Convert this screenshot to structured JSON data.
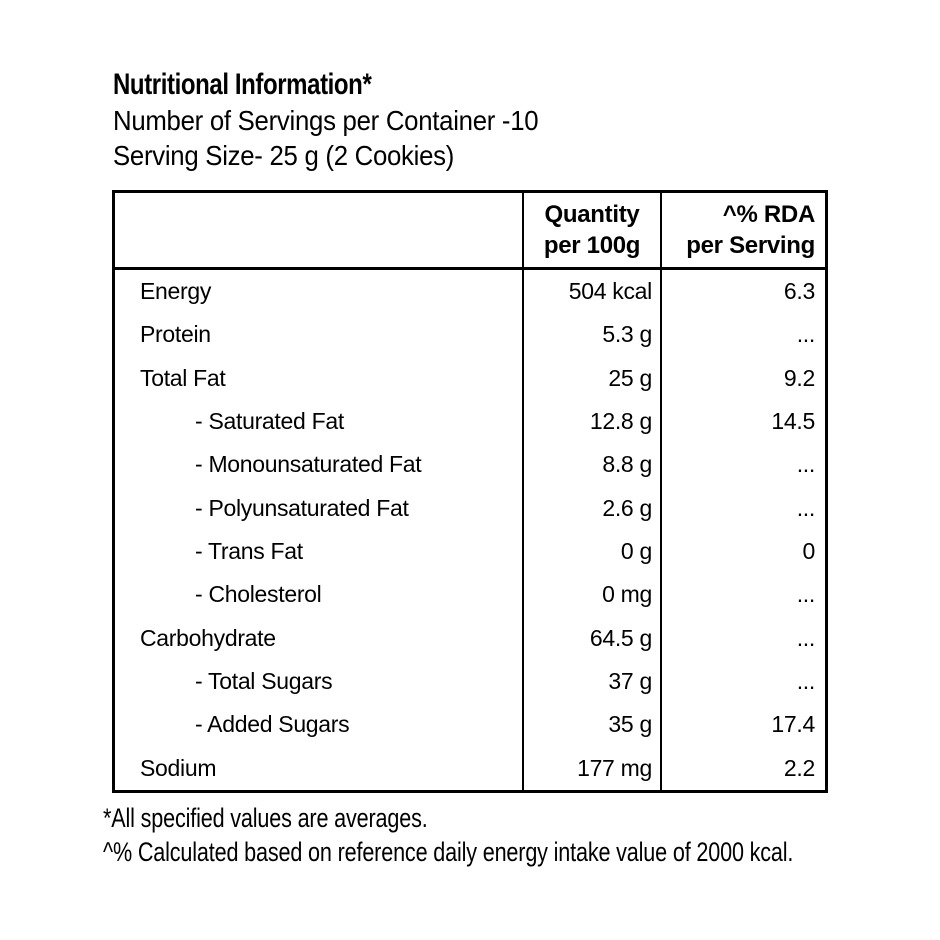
{
  "label": {
    "title": "Nutritional Information*",
    "servings_per_container": "Number of Servings per Container -10",
    "serving_size": "Serving Size- 25 g (2 Cookies)"
  },
  "table": {
    "columns": {
      "nutrient": {
        "line1": "",
        "line2": ""
      },
      "quantity": {
        "line1": "Quantity",
        "line2": "per 100g"
      },
      "rda": {
        "line1": "^% RDA",
        "line2": "per Serving"
      }
    },
    "rows": [
      {
        "name": "Energy",
        "indent": false,
        "quantity": "504 kcal",
        "rda": "6.3"
      },
      {
        "name": "Protein",
        "indent": false,
        "quantity": "5.3 g",
        "rda": "..."
      },
      {
        "name": "Total Fat",
        "indent": false,
        "quantity": "25 g",
        "rda": "9.2"
      },
      {
        "name": "- Saturated Fat",
        "indent": true,
        "quantity": "12.8 g",
        "rda": "14.5"
      },
      {
        "name": "- Monounsaturated Fat",
        "indent": true,
        "quantity": "8.8 g",
        "rda": "..."
      },
      {
        "name": "- Polyunsaturated Fat",
        "indent": true,
        "quantity": "2.6 g",
        "rda": "..."
      },
      {
        "name": "- Trans Fat",
        "indent": true,
        "quantity": "0 g",
        "rda": "0"
      },
      {
        "name": "- Cholesterol",
        "indent": true,
        "quantity": "0 mg",
        "rda": "..."
      },
      {
        "name": "Carbohydrate",
        "indent": false,
        "quantity": "64.5 g",
        "rda": "..."
      },
      {
        "name": "- Total Sugars",
        "indent": true,
        "quantity": "37 g",
        "rda": "..."
      },
      {
        "name": "- Added Sugars",
        "indent": true,
        "quantity": "35 g",
        "rda": "17.4"
      },
      {
        "name": "Sodium",
        "indent": false,
        "quantity": "177 mg",
        "rda": "2.2"
      }
    ]
  },
  "footnotes": {
    "averages_note": "*All specified values are averages.",
    "rda_note": "^% Calculated based on reference daily energy intake value of 2000 kcal."
  },
  "colors": {
    "background": "#ffffff",
    "text": "#000000",
    "border": "#000000"
  }
}
